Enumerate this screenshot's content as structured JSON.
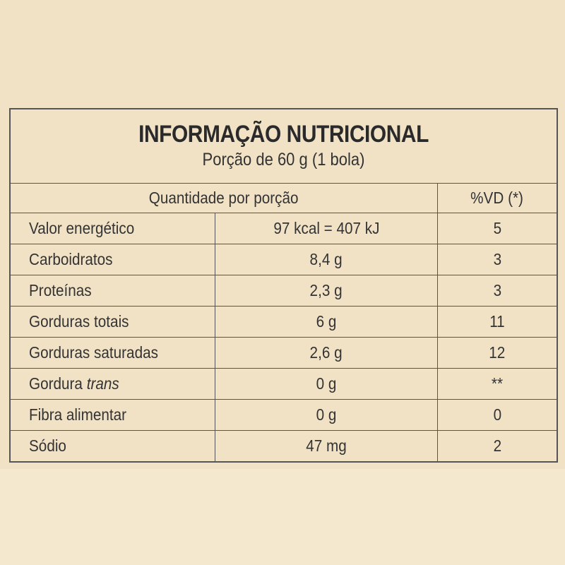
{
  "title": "INFORMAÇÃO NUTRICIONAL",
  "subtitle": "Porção de 60 g (1 bola)",
  "header": {
    "quantity_label": "Quantidade por porção",
    "vd_label": "%VD (*)"
  },
  "rows": [
    {
      "nutrient": "Valor energético",
      "amount": "97 kcal = 407 kJ",
      "vd": "5"
    },
    {
      "nutrient": "Carboidratos",
      "amount": "8,4 g",
      "vd": "3"
    },
    {
      "nutrient": "Proteínas",
      "amount": "2,3 g",
      "vd": "3"
    },
    {
      "nutrient": "Gorduras totais",
      "amount": "6 g",
      "vd": "11"
    },
    {
      "nutrient": "Gorduras saturadas",
      "amount": "2,6 g",
      "vd": "12"
    },
    {
      "nutrient": "Gordura",
      "nutrient_italic": "trans",
      "amount": "0 g",
      "vd": "**"
    },
    {
      "nutrient": "Fibra alimentar",
      "amount": "0 g",
      "vd": "0"
    },
    {
      "nutrient": "Sódio",
      "amount": "47 mg",
      "vd": "2"
    }
  ],
  "colors": {
    "background": "#f1e2c6",
    "border": "#555555",
    "text": "#2b2b2b"
  }
}
